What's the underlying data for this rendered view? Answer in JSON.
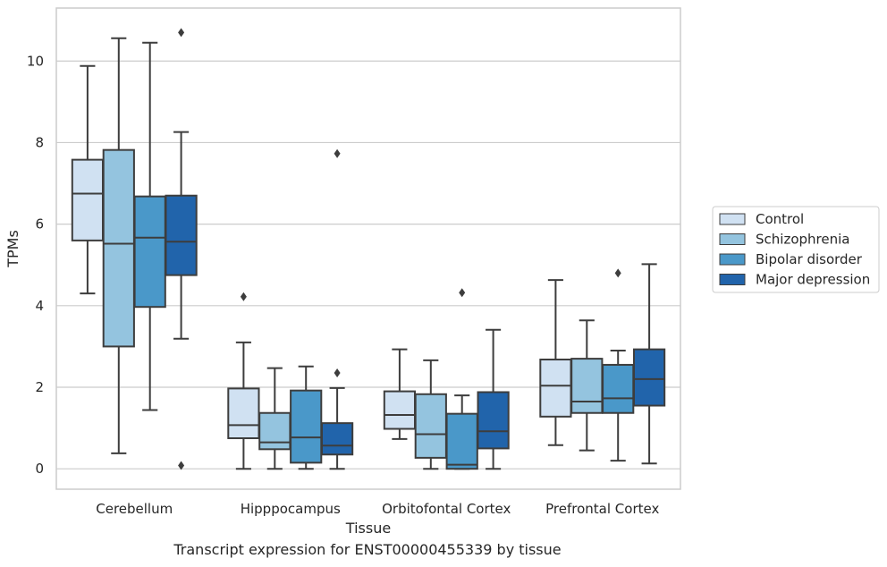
{
  "caption": "Transcript expression for ENST00000455339 by tissue",
  "chart_data": {
    "type": "box",
    "xlabel": "Tissue",
    "ylabel": "TPMs",
    "ylim": [
      -0.5,
      11.3
    ],
    "yticks": [
      0,
      2,
      4,
      6,
      8,
      10
    ],
    "grid": "horizontal",
    "legend_position": "right",
    "categories": [
      "Cerebellum",
      "Hipppocampus",
      "Orbitofontal Cortex",
      "Prefrontal Cortex"
    ],
    "series": [
      {
        "name": "Control",
        "color": "#d0e1f2",
        "boxes": [
          {
            "whisker_low": 4.3,
            "q1": 5.6,
            "median": 6.75,
            "q3": 7.58,
            "whisker_high": 9.88,
            "outliers": []
          },
          {
            "whisker_low": 0.0,
            "q1": 0.75,
            "median": 1.07,
            "q3": 1.97,
            "whisker_high": 3.1,
            "outliers": [
              4.22
            ]
          },
          {
            "whisker_low": 0.73,
            "q1": 0.98,
            "median": 1.32,
            "q3": 1.9,
            "whisker_high": 2.93,
            "outliers": []
          },
          {
            "whisker_low": 0.58,
            "q1": 1.28,
            "median": 2.04,
            "q3": 2.68,
            "whisker_high": 4.63,
            "outliers": []
          }
        ]
      },
      {
        "name": "Schizophrenia",
        "color": "#94c4df",
        "boxes": [
          {
            "whisker_low": 0.38,
            "q1": 3.0,
            "median": 5.52,
            "q3": 7.82,
            "whisker_high": 10.56,
            "outliers": []
          },
          {
            "whisker_low": 0.0,
            "q1": 0.48,
            "median": 0.65,
            "q3": 1.37,
            "whisker_high": 2.47,
            "outliers": []
          },
          {
            "whisker_low": 0.0,
            "q1": 0.27,
            "median": 0.85,
            "q3": 1.83,
            "whisker_high": 2.66,
            "outliers": []
          },
          {
            "whisker_low": 0.45,
            "q1": 1.37,
            "median": 1.65,
            "q3": 2.7,
            "whisker_high": 3.64,
            "outliers": []
          }
        ]
      },
      {
        "name": "Bipolar disorder",
        "color": "#4a98c9",
        "boxes": [
          {
            "whisker_low": 1.44,
            "q1": 3.97,
            "median": 5.67,
            "q3": 6.68,
            "whisker_high": 10.45,
            "outliers": []
          },
          {
            "whisker_low": 0.0,
            "q1": 0.15,
            "median": 0.77,
            "q3": 1.92,
            "whisker_high": 2.51,
            "outliers": []
          },
          {
            "whisker_low": 0.0,
            "q1": 0.0,
            "median": 0.1,
            "q3": 1.35,
            "whisker_high": 1.8,
            "outliers": [
              4.32
            ]
          },
          {
            "whisker_low": 0.2,
            "q1": 1.37,
            "median": 1.73,
            "q3": 2.55,
            "whisker_high": 2.9,
            "outliers": [
              4.8
            ]
          }
        ]
      },
      {
        "name": "Major depression",
        "color": "#2164ab",
        "boxes": [
          {
            "whisker_low": 3.19,
            "q1": 4.75,
            "median": 5.57,
            "q3": 6.7,
            "whisker_high": 8.26,
            "outliers": [
              10.7,
              0.08
            ]
          },
          {
            "whisker_low": 0.0,
            "q1": 0.35,
            "median": 0.57,
            "q3": 1.12,
            "whisker_high": 1.98,
            "outliers": [
              7.73,
              2.35
            ]
          },
          {
            "whisker_low": 0.0,
            "q1": 0.5,
            "median": 0.92,
            "q3": 1.88,
            "whisker_high": 3.41,
            "outliers": []
          },
          {
            "whisker_low": 0.13,
            "q1": 1.55,
            "median": 2.2,
            "q3": 2.93,
            "whisker_high": 5.02,
            "outliers": []
          }
        ]
      }
    ]
  }
}
